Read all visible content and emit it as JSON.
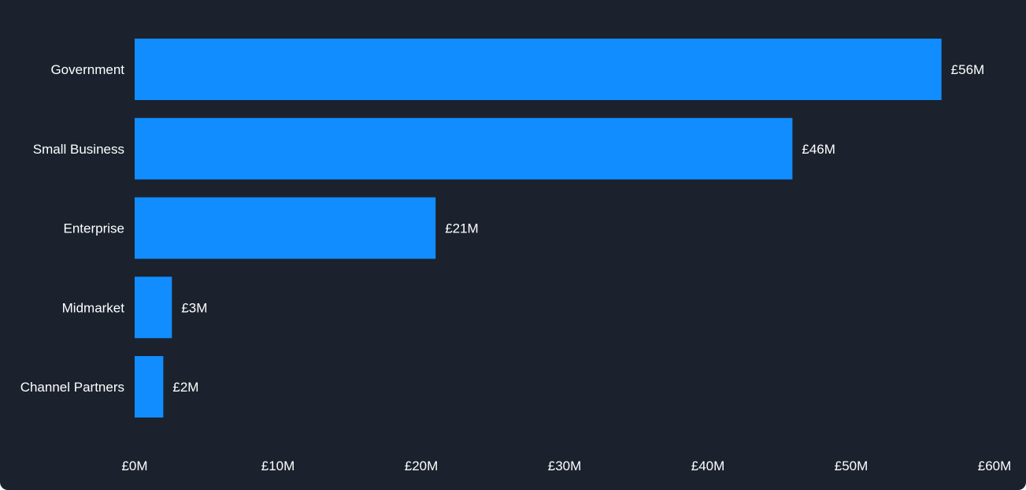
{
  "chart_data": {
    "type": "bar",
    "orientation": "horizontal",
    "categories": [
      "Government",
      "Small Business",
      "Enterprise",
      "Midmarket",
      "Channel Partners"
    ],
    "values": [
      56.3,
      45.9,
      21.0,
      2.6,
      2.0
    ],
    "data_labels": [
      "£56M",
      "£46M",
      "£21M",
      "£3M",
      "£2M"
    ],
    "x_ticks": [
      0,
      10,
      20,
      30,
      40,
      50,
      60
    ],
    "x_tick_labels": [
      "£0M",
      "£10M",
      "£20M",
      "£30M",
      "£40M",
      "£50M",
      "£60M"
    ],
    "xlim": [
      0,
      60
    ],
    "grid": false,
    "legend": "none",
    "title": "",
    "xlabel": "",
    "ylabel": ""
  },
  "colors": {
    "background": "#1b222d",
    "bar": "#118dff",
    "text": "#ffffff"
  }
}
